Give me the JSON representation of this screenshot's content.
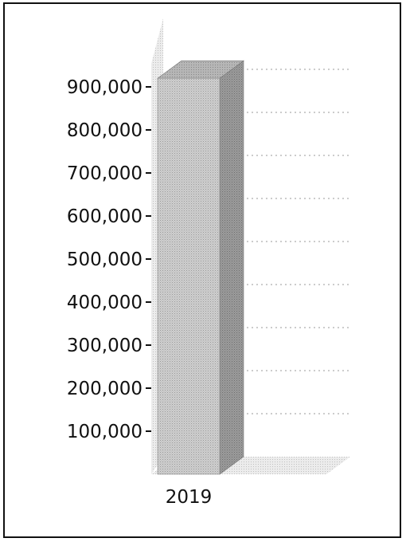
{
  "chart_data": {
    "type": "bar",
    "categories": [
      "2019"
    ],
    "values": [
      920000
    ],
    "title": "",
    "xlabel": "",
    "ylabel": "",
    "ylim": [
      0,
      1000000
    ],
    "yticks": [
      100000,
      200000,
      300000,
      400000,
      500000,
      600000,
      700000,
      800000,
      900000
    ],
    "ytick_labels": [
      "100,000",
      "200,000",
      "300,000",
      "400,000",
      "500,000",
      "600,000",
      "700,000",
      "800,000",
      "900,000"
    ],
    "grid": true,
    "style": "3d-column",
    "colors": {
      "front": "#c4c4c4",
      "side": "#8e8e8e",
      "top": "#a8a8a8",
      "grid": "#999999",
      "wall": "#dcdcdc"
    }
  }
}
